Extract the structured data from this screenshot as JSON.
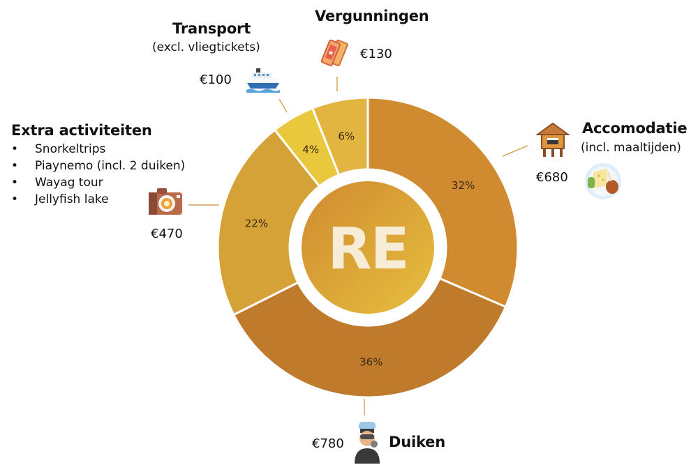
{
  "chart_data": {
    "type": "donut",
    "categories": [
      "Accomodatie",
      "Duiken",
      "Extra activiteiten",
      "Transport",
      "Vergunningen"
    ],
    "values": [
      680,
      780,
      470,
      100,
      130
    ],
    "percent_labels": [
      "32%",
      "36%",
      "22%",
      "4%",
      "6%"
    ],
    "colors": [
      "#D08A30",
      "#C07A2C",
      "#D5A238",
      "#EAC83D",
      "#E2B540"
    ],
    "center_logo": "RE"
  },
  "labels": {
    "accomodatie": {
      "title": "Accomodatie",
      "sub": "(incl. maaltijden)",
      "amount": "€680"
    },
    "duiken": {
      "title": "Duiken",
      "amount": "€780"
    },
    "extra": {
      "title": "Extra activiteiten",
      "amount": "€470",
      "items": [
        "Snorkeltrips",
        "Piaynemo (incl. 2 duiken)",
        "Wayag tour",
        "Jellyfish lake"
      ]
    },
    "transport": {
      "title": "Transport",
      "sub": "(excl. vliegtickets)",
      "amount": "€100"
    },
    "vergunningen": {
      "title": "Vergunningen",
      "amount": "€130"
    }
  },
  "icons": [
    "ship-icon",
    "tickets-icon",
    "hut-icon",
    "food-plate-icon",
    "camera-icon",
    "diver-icon"
  ]
}
